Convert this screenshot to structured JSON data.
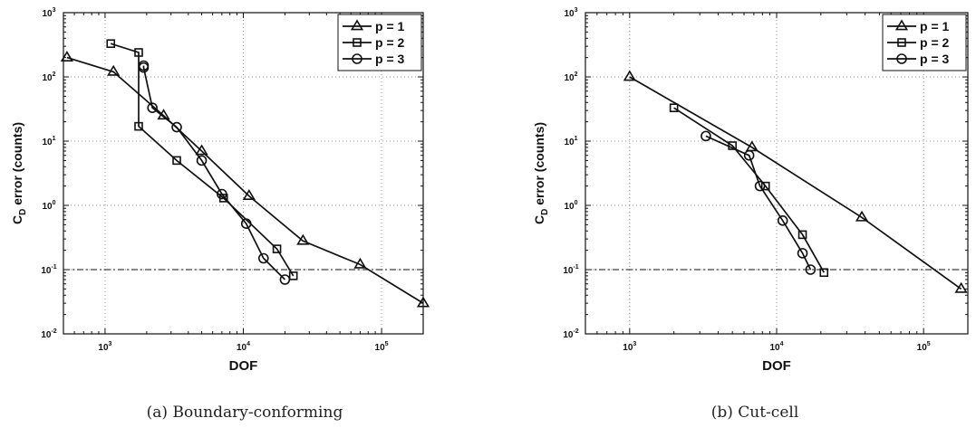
{
  "chart_data": [
    {
      "type": "line",
      "caption": "(a) Boundary-conforming",
      "xlabel": "DOF",
      "ylabel": "C_D error (counts)",
      "ylabel_main": "C",
      "ylabel_sub": "D",
      "ylabel_rest": " error (counts)",
      "xscale": "log",
      "yscale": "log",
      "xlim": [
        500,
        200000
      ],
      "ylim": [
        0.01,
        1000
      ],
      "xticks": [
        1000,
        10000,
        100000
      ],
      "yticks": [
        0.01,
        0.1,
        1,
        10,
        100,
        1000
      ],
      "grid": true,
      "legend_position": "top-right",
      "reference_line": 0.1,
      "series": [
        {
          "name": "p = 1",
          "marker": "triangle",
          "x": [
            530,
            1150,
            2650,
            5000,
            11000,
            27000,
            70000,
            200000
          ],
          "y": [
            200,
            120,
            25,
            7,
            1.4,
            0.28,
            0.12,
            0.03
          ]
        },
        {
          "name": "p = 2",
          "marker": "square",
          "x": [
            1100,
            1750,
            1750,
            3300,
            7200,
            17500,
            23000
          ],
          "y": [
            330,
            240,
            17,
            5,
            1.3,
            0.21,
            0.08
          ]
        },
        {
          "name": "p = 3",
          "marker": "circle",
          "x": [
            1900,
            1900,
            2200,
            3300,
            5000,
            7000,
            10500,
            14000,
            20000
          ],
          "y": [
            150,
            140,
            33,
            16.5,
            5,
            1.5,
            0.52,
            0.15,
            0.07
          ]
        }
      ]
    },
    {
      "type": "line",
      "caption": "(b) Cut-cell",
      "xlabel": "DOF",
      "ylabel": "C_D error (counts)",
      "ylabel_main": "C",
      "ylabel_sub": "D",
      "ylabel_rest": " error (counts)",
      "xscale": "log",
      "yscale": "log",
      "xlim": [
        500,
        200000
      ],
      "ylim": [
        0.01,
        1000
      ],
      "xticks": [
        1000,
        10000,
        100000
      ],
      "yticks": [
        0.01,
        0.1,
        1,
        10,
        100,
        1000
      ],
      "grid": true,
      "legend_position": "top-right",
      "reference_line": 0.1,
      "series": [
        {
          "name": "p = 1",
          "marker": "triangle",
          "x": [
            1000,
            6800,
            38000,
            180000
          ],
          "y": [
            100,
            8,
            0.65,
            0.05
          ]
        },
        {
          "name": "p = 2",
          "marker": "square",
          "x": [
            2000,
            5000,
            8400,
            15000,
            21000
          ],
          "y": [
            33,
            8.5,
            2,
            0.35,
            0.09
          ]
        },
        {
          "name": "p = 3",
          "marker": "circle",
          "x": [
            3300,
            6500,
            7700,
            11000,
            15000,
            17000
          ],
          "y": [
            12,
            6,
            2,
            0.58,
            0.18,
            0.1
          ]
        }
      ]
    }
  ]
}
